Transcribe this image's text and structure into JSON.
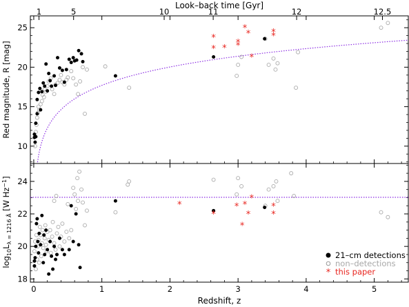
{
  "chart_data": {
    "type": "scatter",
    "x_label": "Redshift, z",
    "top_axis": {
      "label": "Look–back time [Gyr]",
      "ticks": [
        {
          "label": "1",
          "z": 0.077
        },
        {
          "label": "5",
          "z": 0.585
        },
        {
          "label": "10",
          "z": 1.915
        },
        {
          "label": "11",
          "z": 2.635
        },
        {
          "label": "12",
          "z": 3.86
        },
        {
          "label": "12.5",
          "z": 5.12
        }
      ]
    },
    "x_range": [
      -0.05,
      5.5
    ],
    "x_ticks": [
      0,
      1,
      2,
      3,
      4,
      5
    ],
    "colors": {
      "detection": "#000000",
      "non_detection": "#aaaaaa",
      "this_paper": "#e8251f",
      "limit_curve": "#8a2be2"
    },
    "legend": {
      "position": "bottom-right",
      "entries": [
        {
          "symbol": "filled-circle",
          "label": "21–cm detections"
        },
        {
          "symbol": "open-circle",
          "label": "non–detections"
        },
        {
          "symbol": "asterisk",
          "label": "this paper"
        }
      ]
    },
    "panels": [
      {
        "name": "upper",
        "y_label": "Red magnitude, R [mag]",
        "y_range": [
          7.8,
          26.5
        ],
        "y_ticks": [
          10,
          15,
          20,
          25
        ],
        "limit_curve": {
          "style": "dotted",
          "formula": "R = 5*log10(D_L/10pc) - 5.5",
          "y_at_z1": 17.7,
          "y_at_z5": 23.1
        },
        "detections": [
          [
            0.01,
            11.1
          ],
          [
            0.01,
            11.5
          ],
          [
            0.02,
            10.5
          ],
          [
            0.03,
            12.9
          ],
          [
            0.03,
            11.2
          ],
          [
            0.05,
            15.9
          ],
          [
            0.05,
            14.1
          ],
          [
            0.07,
            16.8
          ],
          [
            0.09,
            17.3
          ],
          [
            0.1,
            14.6
          ],
          [
            0.12,
            16.9
          ],
          [
            0.14,
            18.0
          ],
          [
            0.16,
            17.6
          ],
          [
            0.18,
            20.4
          ],
          [
            0.2,
            17.0
          ],
          [
            0.22,
            19.2
          ],
          [
            0.24,
            18.3
          ],
          [
            0.26,
            17.6
          ],
          [
            0.3,
            18.9
          ],
          [
            0.32,
            17.7
          ],
          [
            0.35,
            21.2
          ],
          [
            0.38,
            19.9
          ],
          [
            0.42,
            19.6
          ],
          [
            0.45,
            18.1
          ],
          [
            0.48,
            19.7
          ],
          [
            0.52,
            21.0
          ],
          [
            0.55,
            20.6
          ],
          [
            0.58,
            21.2
          ],
          [
            0.6,
            20.8
          ],
          [
            0.63,
            20.9
          ],
          [
            0.66,
            22.1
          ],
          [
            0.7,
            21.7
          ],
          [
            0.72,
            20.7
          ],
          [
            1.2,
            18.9
          ],
          [
            2.64,
            21.3
          ],
          [
            3.39,
            23.6
          ]
        ],
        "non_detections": [
          [
            0.02,
            10.0
          ],
          [
            0.03,
            11.8
          ],
          [
            0.04,
            12.7
          ],
          [
            0.05,
            13.6
          ],
          [
            0.06,
            14.2
          ],
          [
            0.07,
            15.0
          ],
          [
            0.08,
            14.6
          ],
          [
            0.1,
            15.3
          ],
          [
            0.12,
            15.7
          ],
          [
            0.13,
            16.5
          ],
          [
            0.15,
            16.2
          ],
          [
            0.16,
            17.2
          ],
          [
            0.18,
            16.9
          ],
          [
            0.2,
            17.6
          ],
          [
            0.22,
            18.2
          ],
          [
            0.25,
            18.6
          ],
          [
            0.27,
            17.2
          ],
          [
            0.3,
            16.6
          ],
          [
            0.32,
            17.8
          ],
          [
            0.35,
            18.0
          ],
          [
            0.38,
            18.4
          ],
          [
            0.4,
            19.0
          ],
          [
            0.42,
            18.1
          ],
          [
            0.45,
            17.8
          ],
          [
            0.48,
            18.4
          ],
          [
            0.5,
            18.7
          ],
          [
            0.55,
            19.5
          ],
          [
            0.58,
            18.6
          ],
          [
            0.62,
            17.8
          ],
          [
            0.65,
            16.6
          ],
          [
            0.68,
            18.2
          ],
          [
            0.72,
            20.0
          ],
          [
            0.75,
            14.1
          ],
          [
            0.78,
            19.7
          ],
          [
            1.05,
            20.1
          ],
          [
            1.4,
            17.4
          ],
          [
            2.98,
            18.9
          ],
          [
            3.0,
            20.3
          ],
          [
            3.05,
            21.3
          ],
          [
            3.4,
            23.6
          ],
          [
            3.45,
            20.3
          ],
          [
            3.52,
            21.1
          ],
          [
            3.55,
            19.7
          ],
          [
            3.58,
            20.5
          ],
          [
            3.85,
            17.4
          ],
          [
            3.88,
            21.9
          ],
          [
            5.1,
            25.0
          ],
          [
            5.2,
            25.6
          ]
        ],
        "this_paper": [
          [
            2.64,
            23.8
          ],
          [
            2.64,
            22.4
          ],
          [
            2.8,
            22.5
          ],
          [
            3.0,
            23.2
          ],
          [
            3.0,
            22.8
          ],
          [
            3.1,
            25.0
          ],
          [
            3.15,
            24.3
          ],
          [
            3.2,
            21.3
          ],
          [
            3.52,
            24.5
          ],
          [
            3.52,
            24.0
          ]
        ]
      },
      {
        "name": "lower",
        "y_label": "log10 Lλ = 1216 Å [W Hz⁻¹]",
        "y_range": [
          17.8,
          25.1
        ],
        "y_ticks": [
          18,
          20,
          22,
          24
        ],
        "limit_line": {
          "style": "dotted",
          "y": 23.02
        },
        "detections": [
          [
            0.01,
            18.8
          ],
          [
            0.01,
            19.1
          ],
          [
            0.02,
            19.3
          ],
          [
            0.03,
            20.0
          ],
          [
            0.04,
            21.4
          ],
          [
            0.05,
            21.7
          ],
          [
            0.06,
            20.3
          ],
          [
            0.07,
            19.6
          ],
          [
            0.08,
            20.8
          ],
          [
            0.1,
            20.1
          ],
          [
            0.12,
            21.9
          ],
          [
            0.14,
            19.0
          ],
          [
            0.15,
            20.7
          ],
          [
            0.16,
            19.5
          ],
          [
            0.18,
            21.0
          ],
          [
            0.2,
            19.8
          ],
          [
            0.22,
            18.3
          ],
          [
            0.24,
            20.3
          ],
          [
            0.26,
            19.4
          ],
          [
            0.28,
            18.6
          ],
          [
            0.3,
            20.0
          ],
          [
            0.32,
            19.2
          ],
          [
            0.34,
            19.5
          ],
          [
            0.38,
            20.5
          ],
          [
            0.42,
            19.8
          ],
          [
            0.45,
            19.5
          ],
          [
            0.52,
            19.8
          ],
          [
            0.58,
            20.3
          ],
          [
            0.55,
            22.5
          ],
          [
            0.62,
            22.0
          ],
          [
            0.66,
            20.1
          ],
          [
            0.68,
            18.7
          ],
          [
            1.2,
            22.8
          ],
          [
            2.64,
            22.2
          ],
          [
            3.39,
            22.4
          ]
        ],
        "non_detections": [
          [
            0.01,
            19.7
          ],
          [
            0.02,
            20.3
          ],
          [
            0.03,
            18.6
          ],
          [
            0.04,
            20.7
          ],
          [
            0.05,
            19.2
          ],
          [
            0.06,
            20.0
          ],
          [
            0.07,
            20.4
          ],
          [
            0.08,
            19.0
          ],
          [
            0.09,
            21.2
          ],
          [
            0.1,
            20.7
          ],
          [
            0.11,
            19.4
          ],
          [
            0.12,
            20.2
          ],
          [
            0.13,
            21.0
          ],
          [
            0.14,
            19.9
          ],
          [
            0.16,
            20.5
          ],
          [
            0.17,
            21.3
          ],
          [
            0.18,
            20.1
          ],
          [
            0.19,
            19.7
          ],
          [
            0.2,
            20.9
          ],
          [
            0.22,
            20.4
          ],
          [
            0.24,
            21.0
          ],
          [
            0.25,
            19.6
          ],
          [
            0.27,
            20.6
          ],
          [
            0.28,
            21.5
          ],
          [
            0.3,
            20.2
          ],
          [
            0.32,
            19.8
          ],
          [
            0.34,
            20.8
          ],
          [
            0.36,
            21.2
          ],
          [
            0.38,
            20.0
          ],
          [
            0.4,
            20.6
          ],
          [
            0.42,
            21.4
          ],
          [
            0.45,
            20.3
          ],
          [
            0.48,
            20.9
          ],
          [
            0.5,
            22.6
          ],
          [
            0.52,
            20.5
          ],
          [
            0.55,
            21.0
          ],
          [
            0.58,
            23.6
          ],
          [
            0.6,
            23.2
          ],
          [
            0.62,
            22.3
          ],
          [
            0.64,
            24.2
          ],
          [
            0.65,
            22.8
          ],
          [
            0.67,
            24.6
          ],
          [
            0.7,
            23.5
          ],
          [
            0.72,
            22.7
          ],
          [
            0.75,
            21.3
          ],
          [
            0.78,
            22.2
          ],
          [
            1.2,
            22.1
          ],
          [
            1.38,
            23.8
          ],
          [
            1.4,
            24.0
          ],
          [
            0.3,
            22.8
          ],
          [
            0.33,
            23.1
          ],
          [
            2.64,
            24.1
          ],
          [
            2.98,
            23.2
          ],
          [
            3.0,
            24.2
          ],
          [
            3.05,
            23.7
          ],
          [
            3.4,
            22.5
          ],
          [
            3.45,
            23.5
          ],
          [
            3.52,
            23.7
          ],
          [
            3.56,
            24.0
          ],
          [
            3.58,
            22.8
          ],
          [
            3.78,
            24.5
          ],
          [
            3.82,
            23.1
          ],
          [
            5.1,
            22.1
          ],
          [
            5.2,
            21.8
          ]
        ],
        "this_paper": [
          [
            2.14,
            22.6
          ],
          [
            2.64,
            22.0
          ],
          [
            2.98,
            22.5
          ],
          [
            3.06,
            21.3
          ],
          [
            3.1,
            22.6
          ],
          [
            3.15,
            22.0
          ],
          [
            3.2,
            23.0
          ],
          [
            3.52,
            22.5
          ],
          [
            3.52,
            22.0
          ]
        ]
      }
    ]
  }
}
